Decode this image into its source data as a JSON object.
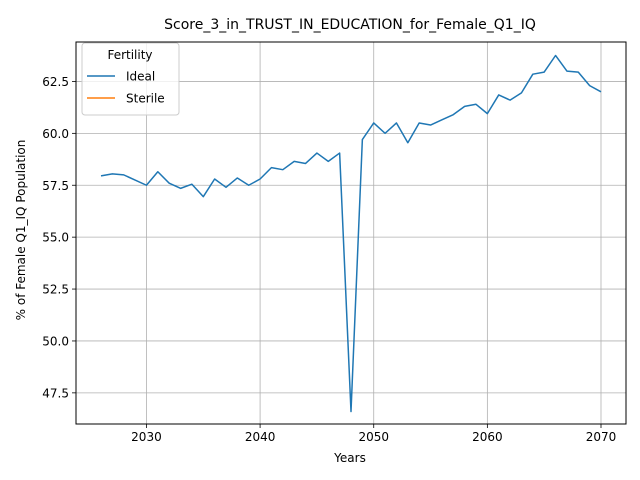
{
  "chart_data": {
    "type": "line",
    "title": "Score_3_in_TRUST_IN_EDUCATION_for_Female_Q1_IQ",
    "xlabel": "Years",
    "ylabel": "% of Female Q1_IQ Population",
    "xlim": [
      2023.8,
      2072.2
    ],
    "ylim": [
      46.0,
      64.4
    ],
    "xticks": [
      2030,
      2040,
      2050,
      2060,
      2070
    ],
    "yticks": [
      47.5,
      50.0,
      52.5,
      55.0,
      57.5,
      60.0,
      62.5
    ],
    "grid": true,
    "legend": {
      "title": "Fertility",
      "placement": "top-left",
      "entries": [
        {
          "label": "Ideal",
          "color": "#1f77b4"
        },
        {
          "label": "Sterile",
          "color": "#ff7f0e"
        }
      ]
    },
    "series": [
      {
        "name": "Ideal",
        "color": "#1f77b4",
        "x": [
          2026,
          2027,
          2028,
          2029,
          2030,
          2031,
          2032,
          2033,
          2034,
          2035,
          2036,
          2037,
          2038,
          2039,
          2040,
          2041,
          2042,
          2043,
          2044,
          2045,
          2046,
          2047,
          2048,
          2049,
          2050,
          2051,
          2052,
          2053,
          2054,
          2055,
          2056,
          2057,
          2058,
          2059,
          2060,
          2061,
          2062,
          2063,
          2064,
          2065,
          2066,
          2067,
          2068,
          2069,
          2070
        ],
        "values": [
          57.95,
          58.05,
          58.0,
          57.75,
          57.5,
          58.15,
          57.6,
          57.35,
          57.55,
          56.95,
          57.8,
          57.4,
          57.85,
          57.5,
          57.8,
          58.35,
          58.25,
          58.65,
          58.55,
          59.05,
          58.65,
          59.05,
          46.6,
          59.7,
          60.5,
          60.0,
          60.5,
          59.55,
          60.5,
          60.4,
          60.65,
          60.9,
          61.3,
          61.4,
          60.95,
          61.85,
          61.6,
          61.95,
          62.85,
          62.95,
          63.75,
          63.0,
          62.95,
          62.3,
          62.0
        ]
      },
      {
        "name": "Sterile",
        "color": "#ff7f0e",
        "x": [],
        "values": []
      }
    ]
  }
}
